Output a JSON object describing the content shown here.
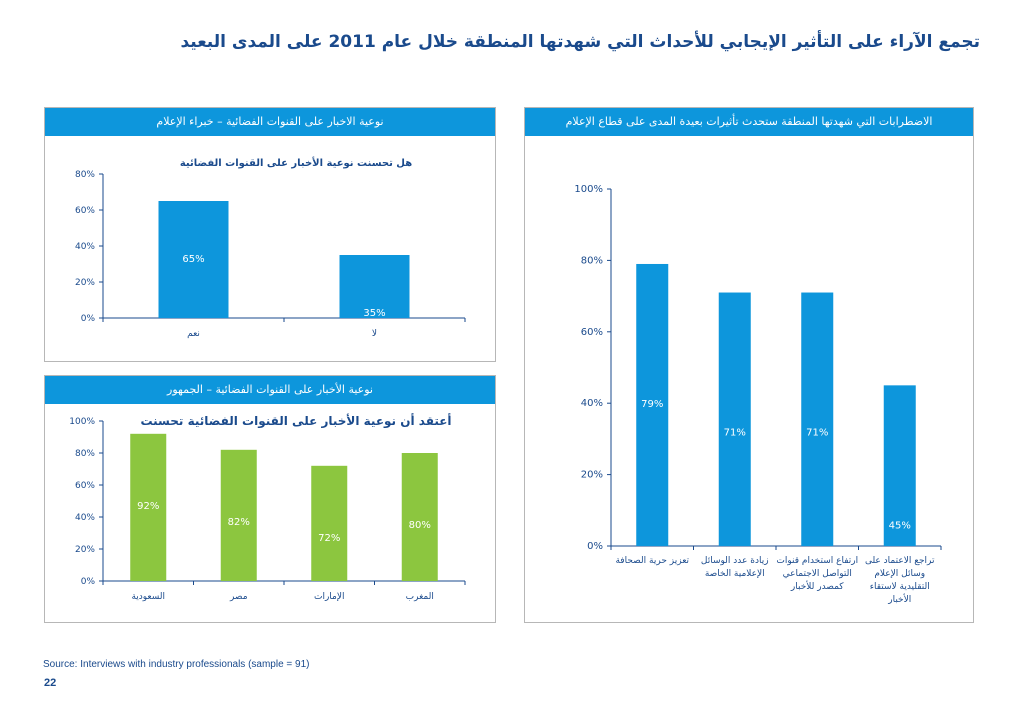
{
  "page": {
    "title": "تجمع الآراء على التأثير الإيجابي للأحداث التي شهدتها المنطقة خلال عام 2011 على المدى البعيد",
    "source": "Source: Interviews with industry professionals (sample = 91)",
    "page_number": "22"
  },
  "colors": {
    "accent": "#0d96dc",
    "bar_blue": "#0d96dc",
    "bar_green": "#8cc63f",
    "title": "#1a4a8c",
    "border": "#b7b7b7"
  },
  "panels": {
    "experts": {
      "header": "نوعية الاخبار على القنوات الفضائية – خبراء الإعلام"
    },
    "public": {
      "header": "نوعية الأخبار على القنوات الفضائية – الجمهور"
    },
    "disruptions": {
      "header": "الاضطرابات التي شهدتها المنطقة ستحدث تأثيرات بعيدة المدى على قطاع الإعلام"
    }
  },
  "chart_data": [
    {
      "id": "experts",
      "type": "bar",
      "title": "هل تحسنت نوعية الأخبار على القنوات الفضائية",
      "categories": [
        "نعم",
        "لا"
      ],
      "values": [
        65,
        35
      ],
      "value_labels": [
        "65%",
        "35%"
      ],
      "ylim": [
        0,
        80
      ],
      "yticks": [
        "0%",
        "20%",
        "40%",
        "60%",
        "80%"
      ],
      "color": "#0d96dc"
    },
    {
      "id": "public",
      "type": "bar",
      "title": "أعتقد أن نوعية الأخبار على القنوات الفضائية تحسنت",
      "categories": [
        "السعودية",
        "مصر",
        "الإمارات",
        "المغرب"
      ],
      "values": [
        92,
        82,
        72,
        80
      ],
      "value_labels": [
        "92%",
        "82%",
        "72%",
        "80%"
      ],
      "ylim": [
        0,
        100
      ],
      "yticks": [
        "0%",
        "20%",
        "40%",
        "60%",
        "80%",
        "100%"
      ],
      "color": "#8cc63f"
    },
    {
      "id": "disruptions",
      "type": "bar",
      "title": "",
      "categories": [
        [
          "تعزيز حرية الصحافة"
        ],
        [
          "زيادة عدد الوسائل",
          "الإعلامية الخاصة"
        ],
        [
          "ارتفاع استخدام قنوات",
          "التواصل الاجتماعي",
          "كمصدر للأخبار"
        ],
        [
          "تراجع الاعتماد على",
          "وسائل الإعلام",
          "التقليدية لاستقاء",
          "الأخبار"
        ]
      ],
      "values": [
        79,
        71,
        71,
        45
      ],
      "value_labels": [
        "79%",
        "71%",
        "71%",
        "45%"
      ],
      "ylim": [
        0,
        100
      ],
      "yticks": [
        "0%",
        "20%",
        "40%",
        "60%",
        "80%",
        "100%"
      ],
      "color": "#0d96dc"
    }
  ]
}
